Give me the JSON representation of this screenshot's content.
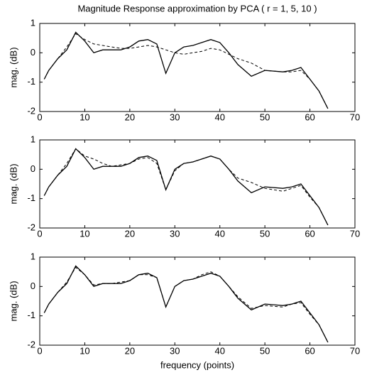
{
  "chart_data": [
    {
      "type": "line",
      "title": "Magnitude Response approximation by PCA ( r = 1, 5, 10 )",
      "ylabel": "mag. (dB)",
      "x": [
        1,
        2,
        4,
        6,
        8,
        10,
        12,
        14,
        16,
        18,
        20,
        22,
        24,
        26,
        28,
        30,
        32,
        34,
        36,
        38,
        40,
        42,
        44,
        47,
        50,
        54,
        56,
        58,
        60,
        62,
        64
      ],
      "xlim": [
        0,
        70
      ],
      "xticks": [
        0,
        10,
        20,
        30,
        40,
        50,
        60,
        70
      ],
      "ylim": [
        -2,
        1
      ],
      "yticks": [
        -2,
        -1,
        0,
        1
      ],
      "series": [
        {
          "color": "#000000",
          "linestyle": "solid",
          "values": [
            -0.9,
            -0.6,
            -0.2,
            0.1,
            0.7,
            0.4,
            0.0,
            0.1,
            0.1,
            0.1,
            0.2,
            0.4,
            0.45,
            0.3,
            -0.7,
            0.0,
            0.2,
            0.25,
            0.35,
            0.45,
            0.35,
            0.0,
            -0.4,
            -0.8,
            -0.6,
            -0.65,
            -0.6,
            -0.5,
            -0.9,
            -1.3,
            -1.9
          ]
        },
        {
          "color": "#000000",
          "linestyle": "dashed",
          "values": [
            -0.9,
            -0.6,
            -0.2,
            0.2,
            0.65,
            0.45,
            0.3,
            0.25,
            0.2,
            0.15,
            0.15,
            0.2,
            0.25,
            0.2,
            0.1,
            0.0,
            -0.05,
            0.0,
            0.05,
            0.15,
            0.1,
            -0.05,
            -0.2,
            -0.35,
            -0.6,
            -0.65,
            -0.65,
            -0.6,
            -0.9,
            -1.3,
            -1.9
          ]
        }
      ]
    },
    {
      "type": "line",
      "ylabel": "mag. (dB)",
      "x": [
        1,
        2,
        4,
        6,
        8,
        10,
        12,
        14,
        16,
        18,
        20,
        22,
        24,
        26,
        28,
        30,
        32,
        34,
        36,
        38,
        40,
        42,
        44,
        47,
        50,
        54,
        56,
        58,
        60,
        62,
        64
      ],
      "xlim": [
        0,
        70
      ],
      "xticks": [
        0,
        10,
        20,
        30,
        40,
        50,
        60,
        70
      ],
      "ylim": [
        -2,
        1
      ],
      "yticks": [
        -2,
        -1,
        0,
        1
      ],
      "series": [
        {
          "color": "#000000",
          "linestyle": "solid",
          "values": [
            -0.9,
            -0.6,
            -0.2,
            0.1,
            0.7,
            0.4,
            0.0,
            0.1,
            0.1,
            0.1,
            0.2,
            0.4,
            0.45,
            0.3,
            -0.7,
            0.0,
            0.2,
            0.25,
            0.35,
            0.45,
            0.35,
            0.0,
            -0.4,
            -0.8,
            -0.6,
            -0.65,
            -0.6,
            -0.5,
            -0.9,
            -1.3,
            -1.9
          ]
        },
        {
          "color": "#000000",
          "linestyle": "dashed",
          "values": [
            -0.9,
            -0.6,
            -0.2,
            0.2,
            0.7,
            0.45,
            0.35,
            0.2,
            0.1,
            0.15,
            0.2,
            0.35,
            0.4,
            0.2,
            -0.7,
            -0.05,
            0.2,
            0.25,
            0.35,
            0.45,
            0.35,
            0.0,
            -0.3,
            -0.45,
            -0.65,
            -0.75,
            -0.65,
            -0.55,
            -0.95,
            -1.3,
            -1.9
          ]
        }
      ]
    },
    {
      "type": "line",
      "ylabel": "mag. (dB)",
      "xlabel": "frequency (points)",
      "x": [
        1,
        2,
        4,
        6,
        8,
        10,
        12,
        14,
        16,
        18,
        20,
        22,
        24,
        26,
        28,
        30,
        32,
        34,
        36,
        38,
        40,
        42,
        44,
        47,
        50,
        54,
        56,
        58,
        60,
        62,
        64
      ],
      "xlim": [
        0,
        70
      ],
      "xticks": [
        0,
        10,
        20,
        30,
        40,
        50,
        60,
        70
      ],
      "ylim": [
        -2,
        1
      ],
      "yticks": [
        -2,
        -1,
        0,
        1
      ],
      "series": [
        {
          "color": "#000000",
          "linestyle": "solid",
          "values": [
            -0.9,
            -0.6,
            -0.2,
            0.1,
            0.7,
            0.4,
            0.0,
            0.1,
            0.1,
            0.1,
            0.2,
            0.4,
            0.45,
            0.3,
            -0.7,
            0.0,
            0.2,
            0.25,
            0.35,
            0.45,
            0.35,
            0.0,
            -0.4,
            -0.8,
            -0.6,
            -0.65,
            -0.6,
            -0.5,
            -0.9,
            -1.3,
            -1.9
          ]
        },
        {
          "color": "#000000",
          "linestyle": "dashed",
          "values": [
            -0.9,
            -0.6,
            -0.2,
            0.15,
            0.65,
            0.4,
            0.05,
            0.1,
            0.1,
            0.15,
            0.2,
            0.4,
            0.4,
            0.3,
            -0.7,
            0.0,
            0.2,
            0.25,
            0.4,
            0.5,
            0.35,
            0.0,
            -0.35,
            -0.75,
            -0.65,
            -0.7,
            -0.6,
            -0.55,
            -0.95,
            -1.3,
            -1.9
          ]
        }
      ]
    }
  ]
}
